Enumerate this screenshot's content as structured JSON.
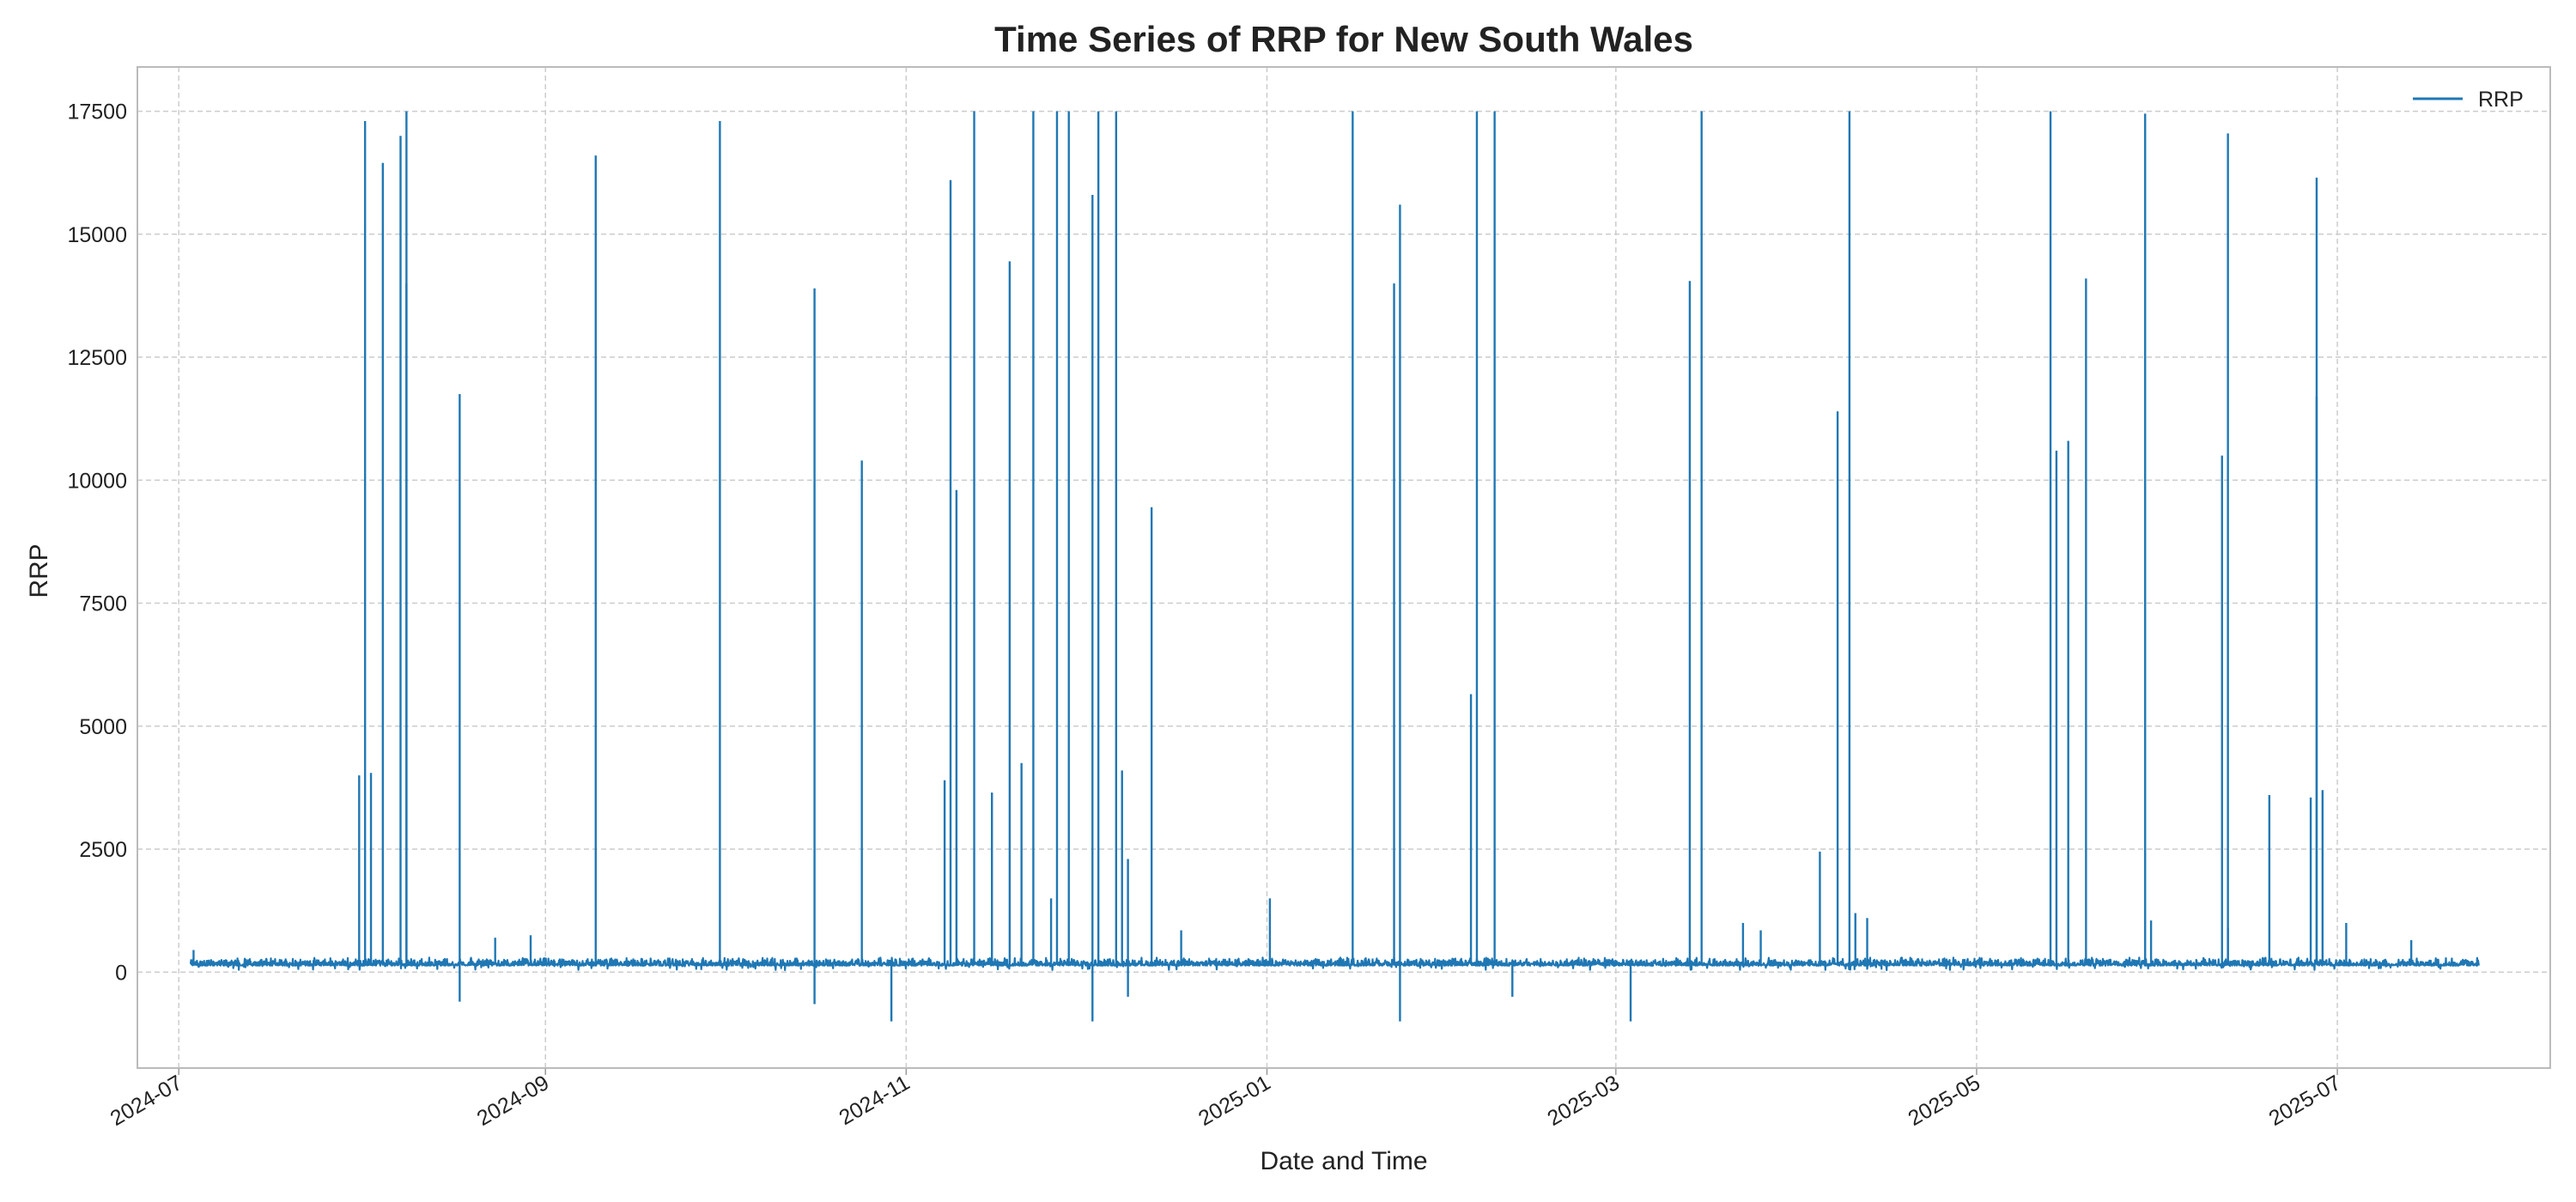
{
  "chart_data": {
    "type": "line",
    "title": "Time Series of RRP for New South Wales",
    "xlabel": "Date and Time",
    "ylabel": "RRP",
    "x_ticks": [
      "2024-07",
      "2024-09",
      "2024-11",
      "2025-01",
      "2025-03",
      "2025-05",
      "2025-07"
    ],
    "x_tick_dates": [
      "2024-07-01",
      "2024-09-01",
      "2024-11-01",
      "2025-01-01",
      "2025-03-01",
      "2025-05-01",
      "2025-07-01"
    ],
    "y_ticks": [
      0,
      2500,
      5000,
      7500,
      10000,
      12500,
      15000,
      17500
    ],
    "xlim": [
      "2024-06-24",
      "2025-08-06"
    ],
    "ylim": [
      -1950,
      18400
    ],
    "data_range": [
      "2024-07-03",
      "2025-07-25"
    ],
    "grid": true,
    "legend_position": "top-right",
    "color": "#1f77b4",
    "series": [
      {
        "name": "RRP",
        "baseline_range": [
          40,
          300
        ],
        "spikes": [
          {
            "date": "2024-07-03",
            "value": 450
          },
          {
            "date": "2024-07-31",
            "value": 4000
          },
          {
            "date": "2024-08-01",
            "value": 17300
          },
          {
            "date": "2024-08-02",
            "value": 4050
          },
          {
            "date": "2024-08-04",
            "value": 16450
          },
          {
            "date": "2024-08-07",
            "value": 17000
          },
          {
            "date": "2024-08-08",
            "value": 17500
          },
          {
            "date": "2024-08-08",
            "value": 14000
          },
          {
            "date": "2024-08-17",
            "value": 11750
          },
          {
            "date": "2024-08-17",
            "value": -600
          },
          {
            "date": "2024-08-23",
            "value": 700
          },
          {
            "date": "2024-08-29",
            "value": 750
          },
          {
            "date": "2024-09-09",
            "value": 16600
          },
          {
            "date": "2024-09-30",
            "value": 17300
          },
          {
            "date": "2024-10-16",
            "value": 13900
          },
          {
            "date": "2024-10-16",
            "value": -650
          },
          {
            "date": "2024-10-24",
            "value": 10400
          },
          {
            "date": "2024-10-29",
            "value": -1000
          },
          {
            "date": "2024-11-07",
            "value": 3900
          },
          {
            "date": "2024-11-08",
            "value": 16100
          },
          {
            "date": "2024-11-09",
            "value": 9800
          },
          {
            "date": "2024-11-12",
            "value": 17500
          },
          {
            "date": "2024-11-15",
            "value": 3650
          },
          {
            "date": "2024-11-18",
            "value": 14450
          },
          {
            "date": "2024-11-20",
            "value": 4250
          },
          {
            "date": "2024-11-22",
            "value": 17500
          },
          {
            "date": "2024-11-25",
            "value": 1500
          },
          {
            "date": "2024-11-26",
            "value": 17500
          },
          {
            "date": "2024-11-28",
            "value": 17500
          },
          {
            "date": "2024-12-02",
            "value": 15800
          },
          {
            "date": "2024-12-02",
            "value": -1000
          },
          {
            "date": "2024-12-03",
            "value": 17500
          },
          {
            "date": "2024-12-06",
            "value": 17500
          },
          {
            "date": "2024-12-07",
            "value": 4100
          },
          {
            "date": "2024-12-08",
            "value": 2300
          },
          {
            "date": "2024-12-08",
            "value": -500
          },
          {
            "date": "2024-12-12",
            "value": 9450
          },
          {
            "date": "2024-12-17",
            "value": 850
          },
          {
            "date": "2025-01-01",
            "value": 1500
          },
          {
            "date": "2025-01-15",
            "value": 17500
          },
          {
            "date": "2025-01-22",
            "value": 14000
          },
          {
            "date": "2025-01-23",
            "value": 15600
          },
          {
            "date": "2025-01-23",
            "value": -1000
          },
          {
            "date": "2025-02-04",
            "value": 5650
          },
          {
            "date": "2025-02-05",
            "value": 17500
          },
          {
            "date": "2025-02-08",
            "value": 17500
          },
          {
            "date": "2025-02-11",
            "value": -500
          },
          {
            "date": "2025-03-03",
            "value": -1000
          },
          {
            "date": "2025-03-13",
            "value": 14050
          },
          {
            "date": "2025-03-15",
            "value": 17500
          },
          {
            "date": "2025-03-22",
            "value": 1000
          },
          {
            "date": "2025-03-25",
            "value": 850
          },
          {
            "date": "2025-04-04",
            "value": 2450
          },
          {
            "date": "2025-04-07",
            "value": 11400
          },
          {
            "date": "2025-04-09",
            "value": 17500
          },
          {
            "date": "2025-04-10",
            "value": 1200
          },
          {
            "date": "2025-04-12",
            "value": 1100
          },
          {
            "date": "2025-05-13",
            "value": 17500
          },
          {
            "date": "2025-05-14",
            "value": 10600
          },
          {
            "date": "2025-05-16",
            "value": 10800
          },
          {
            "date": "2025-05-19",
            "value": 14100
          },
          {
            "date": "2025-05-29",
            "value": 17450
          },
          {
            "date": "2025-05-30",
            "value": 1050
          },
          {
            "date": "2025-06-11",
            "value": 10500
          },
          {
            "date": "2025-06-12",
            "value": 17050
          },
          {
            "date": "2025-06-12",
            "value": 900
          },
          {
            "date": "2025-06-19",
            "value": 3600
          },
          {
            "date": "2025-06-26",
            "value": 3550
          },
          {
            "date": "2025-06-27",
            "value": 16150
          },
          {
            "date": "2025-06-27",
            "value": 11700
          },
          {
            "date": "2025-06-28",
            "value": 3700
          },
          {
            "date": "2025-07-02",
            "value": 1000
          },
          {
            "date": "2025-07-13",
            "value": 650
          }
        ]
      }
    ]
  }
}
